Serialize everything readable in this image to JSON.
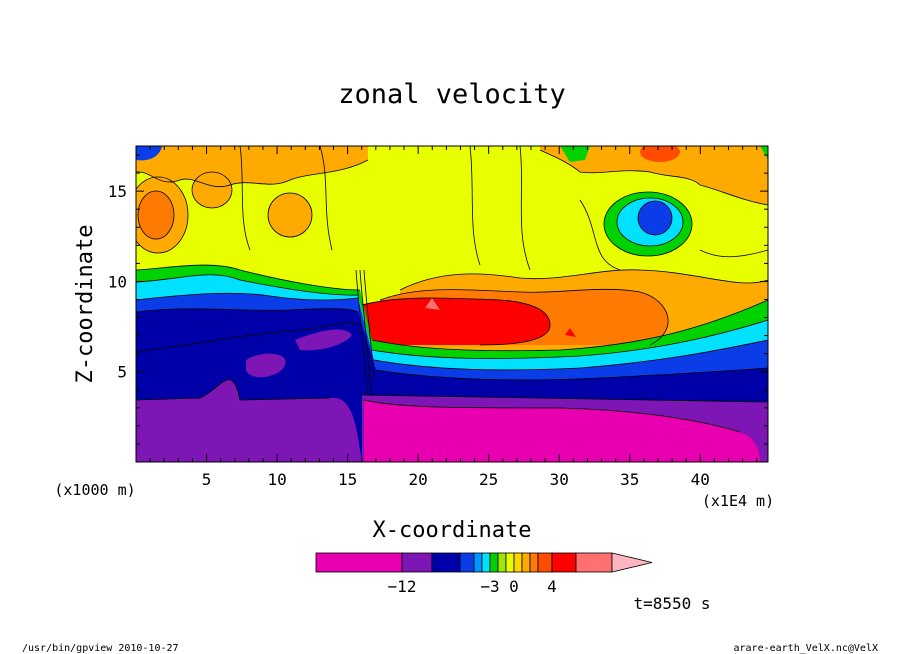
{
  "chart_data": {
    "type": "heatmap",
    "title": "zonal velocity",
    "xlabel": "X-coordinate",
    "ylabel": "Z-coordinate",
    "x_unit_left": "(x1000 m)",
    "x_unit_right": "(x1E4 m)",
    "x_ticks": [
      {
        "value": 5,
        "label": "5"
      },
      {
        "value": 10,
        "label": "10"
      },
      {
        "value": 15,
        "label": "15"
      },
      {
        "value": 20,
        "label": "20"
      },
      {
        "value": 25,
        "label": "25"
      },
      {
        "value": 30,
        "label": "30"
      },
      {
        "value": 35,
        "label": "35"
      },
      {
        "value": 40,
        "label": "40"
      }
    ],
    "y_ticks": [
      {
        "value": 5,
        "label": "5"
      },
      {
        "value": 10,
        "label": "10"
      },
      {
        "value": 15,
        "label": "15"
      }
    ],
    "xlim": [
      0,
      44.8
    ],
    "ylim": [
      0,
      17.5
    ],
    "colorbar": {
      "labels": [
        {
          "value": -12,
          "label": "−12"
        },
        {
          "value": -3,
          "label": "−3"
        },
        {
          "value": 0,
          "label": "0"
        },
        {
          "value": 4,
          "label": "4"
        }
      ],
      "levels": [
        -20,
        -12,
        -9,
        -6,
        -5,
        -4,
        -3,
        -2,
        -1,
        0,
        1,
        2,
        3,
        4,
        6,
        9,
        12
      ],
      "colors": [
        "#e800b0",
        "#7d16b4",
        "#0000a8",
        "#0a3ce8",
        "#0096ff",
        "#00e0ff",
        "#00d200",
        "#a0e600",
        "#e8ff00",
        "#ffd700",
        "#ffaa00",
        "#ff7a00",
        "#ff4c00",
        "#ff0000",
        "#ff7070",
        "#ffb6c1"
      ]
    },
    "time_label": "t=8550 s"
  },
  "footer": {
    "left": "/usr/bin/gpview  2010-10-27",
    "right": "arare-earth_VelX.nc@VelX"
  },
  "colors": {
    "magenta": "#e800b0",
    "purple": "#7d16b4",
    "navy": "#0000a8",
    "blue": "#0a3ce8",
    "light_blue": "#0096ff",
    "cyan": "#00e0ff",
    "green": "#00d200",
    "lime": "#a0e600",
    "yellow": "#e8ff00",
    "gold": "#ffd700",
    "orange": "#ffaa00",
    "dark_orange": "#ff7a00",
    "red_orange": "#ff4c00",
    "red": "#ff0000",
    "salmon": "#ff7070",
    "pink": "#ffb6c1"
  }
}
